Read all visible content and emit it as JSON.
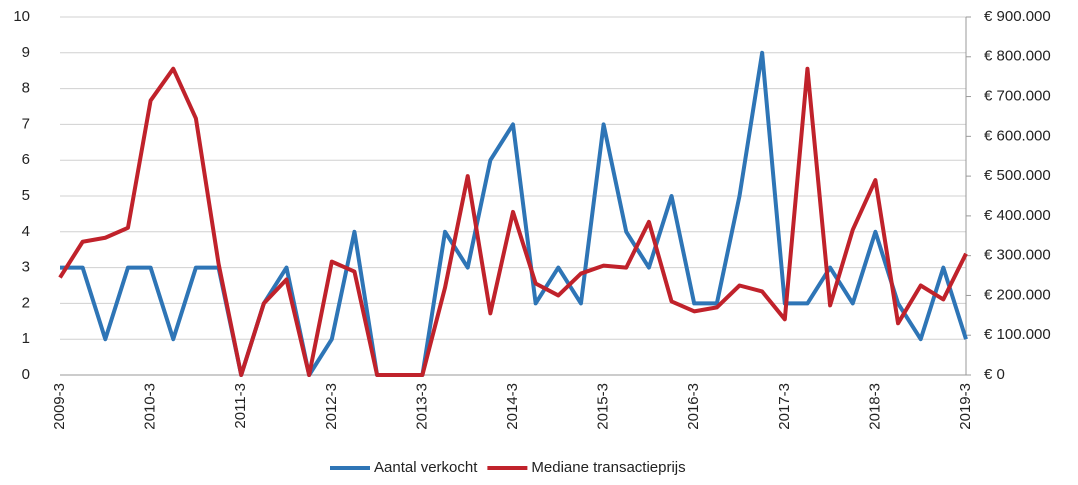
{
  "chart_data": {
    "type": "line",
    "categories": [
      "2009-3",
      null,
      null,
      null,
      "2010-3",
      null,
      null,
      null,
      "2011-3",
      null,
      null,
      null,
      "2012-3",
      null,
      null,
      null,
      "2013-3",
      null,
      null,
      null,
      "2014-3",
      null,
      null,
      null,
      "2015-3",
      null,
      null,
      null,
      "2016-3",
      null,
      null,
      null,
      "2017-3",
      null,
      null,
      null,
      "2018-3",
      null,
      null,
      null,
      "2019-3"
    ],
    "series": [
      {
        "name": "Aantal verkocht",
        "color": "#2e75b6",
        "axis": "y",
        "values": [
          3,
          3,
          1,
          3,
          3,
          1,
          3,
          3,
          0,
          2,
          3,
          0,
          1,
          4,
          0,
          0,
          0,
          4,
          3,
          6,
          7,
          2,
          3,
          2,
          7,
          4,
          3,
          5,
          2,
          2,
          5,
          9,
          2,
          2,
          3,
          2,
          4,
          2,
          1,
          3,
          1
        ]
      },
      {
        "name": "Mediane transactieprijs",
        "color": "#c0222b",
        "axis": "y2",
        "values": [
          245000,
          335000,
          345000,
          370000,
          690000,
          770000,
          645000,
          280000,
          0,
          180000,
          240000,
          0,
          285000,
          260000,
          0,
          0,
          0,
          220000,
          500000,
          155000,
          410000,
          230000,
          200000,
          255000,
          275000,
          270000,
          385000,
          185000,
          160000,
          170000,
          225000,
          210000,
          140000,
          770000,
          175000,
          365000,
          490000,
          130000,
          225000,
          190000,
          305000
        ]
      }
    ],
    "ylim": [
      0,
      10
    ],
    "yticks": [
      0,
      1,
      2,
      3,
      4,
      5,
      6,
      7,
      8,
      9,
      10
    ],
    "y2lim": [
      0,
      900000
    ],
    "y2ticks": [
      {
        "value": 0,
        "label": "€ 0"
      },
      {
        "value": 100000,
        "label": "€ 100.000"
      },
      {
        "value": 200000,
        "label": "€ 200.000"
      },
      {
        "value": 300000,
        "label": "€ 300.000"
      },
      {
        "value": 400000,
        "label": "€ 400.000"
      },
      {
        "value": 500000,
        "label": "€ 500.000"
      },
      {
        "value": 600000,
        "label": "€ 600.000"
      },
      {
        "value": 700000,
        "label": "€ 700.000"
      },
      {
        "value": 800000,
        "label": "€ 800.000"
      },
      {
        "value": 900000,
        "label": "€ 900.000"
      }
    ],
    "grid": true,
    "legend": "bottom"
  }
}
